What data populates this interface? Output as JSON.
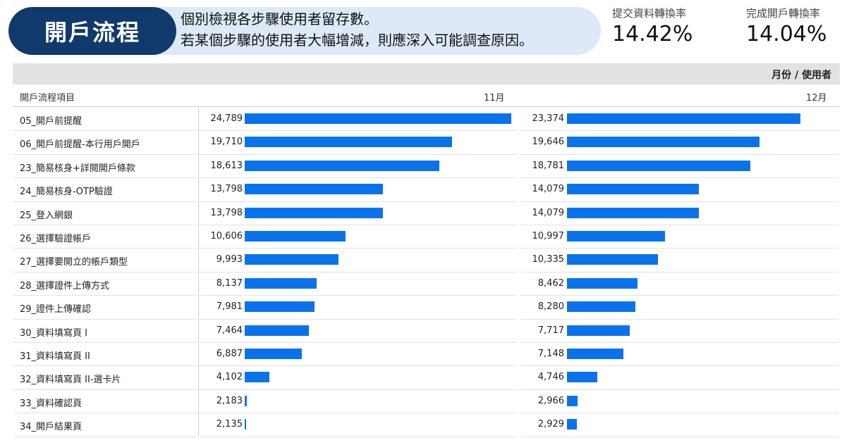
{
  "header": {
    "title": "開戶流程",
    "description_line1": "個別檢視各步驟使用者留存數。",
    "description_line2": "若某個步驟的使用者大幅增減，則應深入可能調查原因。"
  },
  "kpis": [
    {
      "label": "提交資料轉換率",
      "value": "14.42%"
    },
    {
      "label": "完成開戶轉換率",
      "value": "14.04%"
    }
  ],
  "table": {
    "unit_label": "月份 / 使用者",
    "row_header": "開戶流程項目",
    "colors": {
      "bar": "#0a73eb"
    }
  },
  "chart_data": {
    "type": "bar",
    "orientation": "horizontal",
    "categories": [
      "05_開戶前提醒",
      "06_開戶前提醒-本行用戶開戶",
      "23_簡易核身+詳閱開戶條款",
      "24_簡易核身-OTP驗證",
      "25_登入網銀",
      "26_選擇驗證帳戶",
      "27_選擇要開立的帳戶類型",
      "28_選擇證件上傳方式",
      "29_證件上傳確認",
      "30_資料填寫頁 I",
      "31_資料填寫頁 II",
      "32_資料填寫頁 II-選卡片",
      "33_資料確認頁",
      "34_開戶結果頁"
    ],
    "series": [
      {
        "name": "11月",
        "values": [
          24789,
          19710,
          18613,
          13798,
          13798,
          10606,
          9993,
          8137,
          7981,
          7464,
          6887,
          4102,
          2183,
          2135
        ],
        "labels": [
          "24,789",
          "19,710",
          "18,613",
          "13,798",
          "13,798",
          "10,606",
          "9,993",
          "8,137",
          "7,981",
          "7,464",
          "6,887",
          "4,102",
          "2,183",
          "2,135"
        ]
      },
      {
        "name": "12月",
        "values": [
          23374,
          19646,
          18781,
          14079,
          14079,
          10997,
          10335,
          8462,
          8280,
          7717,
          7148,
          4746,
          2966,
          2929
        ],
        "labels": [
          "23,374",
          "19,646",
          "18,781",
          "14,079",
          "14,079",
          "10,997",
          "10,335",
          "8,462",
          "8,280",
          "7,717",
          "7,148",
          "4,746",
          "2,966",
          "2,929"
        ]
      }
    ]
  }
}
